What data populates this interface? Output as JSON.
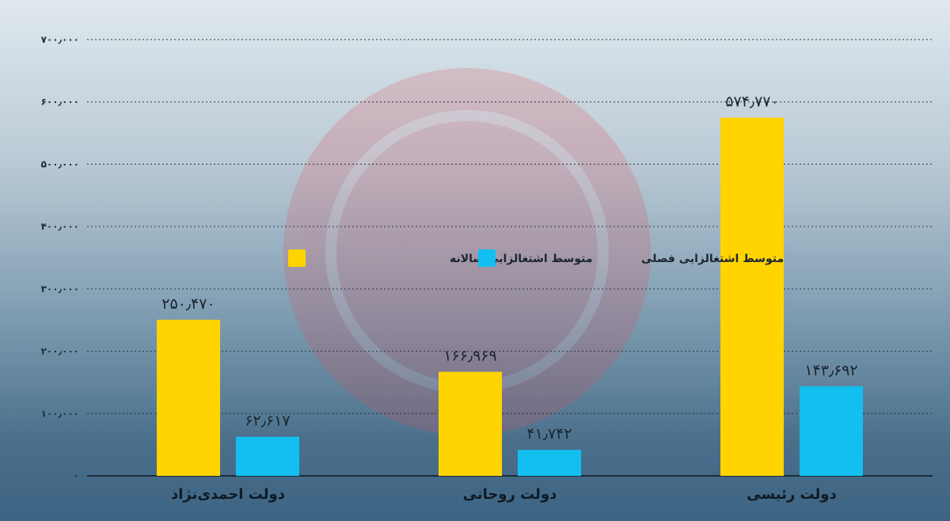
{
  "chart_data": {
    "type": "bar",
    "categories": [
      "دولت احمدی‌نژاد",
      "دولت روحانی",
      "دولت رئیسی"
    ],
    "series": [
      {
        "name": "متوسط اشتغالزایی سالانه",
        "color": "#ffd400",
        "values": [
          250470,
          166969,
          574770
        ],
        "labels": [
          "۲۵۰٫۴۷۰",
          "۱۶۶٫۹۶۹",
          "۵۷۴٫۷۷۰"
        ]
      },
      {
        "name": "متوسط اشتغالزایی فصلی",
        "color": "#12bff0",
        "values": [
          62617,
          41742,
          143692
        ],
        "labels": [
          "۶۲٫۶۱۷",
          "۴۱٫۷۴۲",
          "۱۴۳٫۶۹۲"
        ]
      }
    ],
    "ylim": [
      0,
      700000
    ],
    "y_ticks": [
      0,
      100000,
      200000,
      300000,
      400000,
      500000,
      600000,
      700000
    ],
    "y_tick_labels": [
      "۰",
      "۱۰۰٫۰۰۰",
      "۲۰۰٫۰۰۰",
      "۳۰۰٫۰۰۰",
      "۴۰۰٫۰۰۰",
      "۵۰۰٫۰۰۰",
      "۶۰۰٫۰۰۰",
      "۷۰۰٫۰۰۰"
    ],
    "grid": true,
    "legend_position": "center"
  }
}
